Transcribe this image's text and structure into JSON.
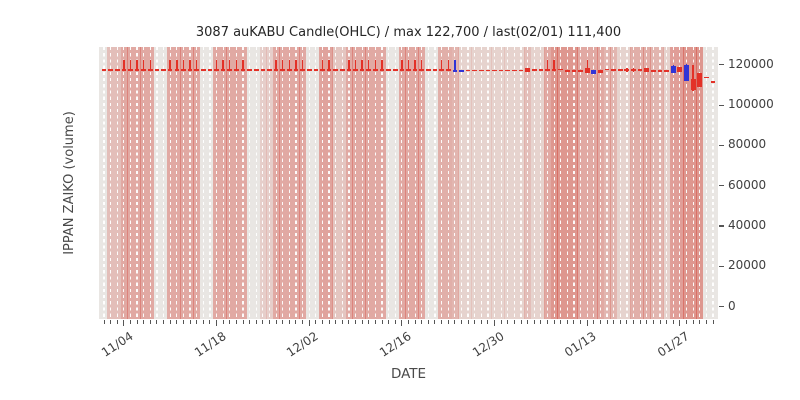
{
  "title": "3087 auKABU Candle(OHLC) / max 122,700 / last(02/01) 111,400",
  "x_axis_label": "DATE",
  "y_axis_label": "IPPAN ZAIKO (volume)",
  "colors": {
    "plot_background": "#e9e6e3",
    "up_candle": "#e33127",
    "down_candle": "#3134d6",
    "volume_band": "212,72,60",
    "gridline": "#ffffff",
    "tick": "#555555",
    "tick_text": "#404040",
    "title_text": "#262626"
  },
  "chart_data": {
    "type": "candlestick",
    "title": "3087 auKABU Candle(OHLC) / max 122,700 / last(02/01) 111,400",
    "xlabel": "DATE",
    "ylabel": "IPPAN ZAIKO (volume)",
    "max_value": 122700,
    "last_date": "02/01",
    "last_value": 111400,
    "days": 93,
    "start_date": "11/01",
    "end_date": "02/01",
    "ylim": [
      -6135,
      128835
    ],
    "grid": "vertical-dashed-per-day",
    "y_ticks": [
      {
        "value": 0,
        "label": "0"
      },
      {
        "value": 20000,
        "label": "20000"
      },
      {
        "value": 40000,
        "label": "40000"
      },
      {
        "value": 60000,
        "label": "60000"
      },
      {
        "value": 80000,
        "label": "80000"
      },
      {
        "value": 100000,
        "label": "100000"
      },
      {
        "value": 120000,
        "label": "120000"
      }
    ],
    "x_ticks": [
      {
        "day": 3,
        "label": "11/04"
      },
      {
        "day": 17,
        "label": "11/18"
      },
      {
        "day": 31,
        "label": "12/02"
      },
      {
        "day": 45,
        "label": "12/16"
      },
      {
        "day": 59,
        "label": "12/30"
      },
      {
        "day": 73,
        "label": "01/13"
      },
      {
        "day": 87,
        "label": "01/27"
      }
    ],
    "candles": [
      {
        "t": "dash",
        "v": 117400
      },
      {
        "t": "dash",
        "v": 117400
      },
      {
        "t": "dash",
        "v": 117400
      },
      {
        "t": "line",
        "lo": 117350,
        "hi": 122600
      },
      {
        "t": "line",
        "lo": 117350,
        "hi": 122600
      },
      {
        "t": "line",
        "lo": 117350,
        "hi": 122600
      },
      {
        "t": "line",
        "lo": 117350,
        "hi": 122600
      },
      {
        "t": "line",
        "lo": 117350,
        "hi": 122600
      },
      {
        "t": "dash",
        "v": 117400
      },
      {
        "t": "dash",
        "v": 117400
      },
      {
        "t": "line",
        "lo": 117350,
        "hi": 122600
      },
      {
        "t": "line",
        "lo": 117350,
        "hi": 122600
      },
      {
        "t": "line",
        "lo": 117350,
        "hi": 122600
      },
      {
        "t": "line",
        "lo": 117350,
        "hi": 122600
      },
      {
        "t": "line",
        "lo": 117350,
        "hi": 122600
      },
      {
        "t": "dash",
        "v": 117400
      },
      {
        "t": "dash",
        "v": 117400
      },
      {
        "t": "line",
        "lo": 117350,
        "hi": 122600
      },
      {
        "t": "line",
        "lo": 117350,
        "hi": 122600
      },
      {
        "t": "line",
        "lo": 117350,
        "hi": 122600
      },
      {
        "t": "line",
        "lo": 117350,
        "hi": 122600
      },
      {
        "t": "line",
        "lo": 117350,
        "hi": 122600
      },
      {
        "t": "dash",
        "v": 117400
      },
      {
        "t": "dash",
        "v": 117400
      },
      {
        "t": "dash",
        "v": 117400
      },
      {
        "t": "dash",
        "v": 117400
      },
      {
        "t": "line",
        "lo": 117350,
        "hi": 122600
      },
      {
        "t": "line",
        "lo": 117350,
        "hi": 122600
      },
      {
        "t": "line",
        "lo": 117350,
        "hi": 122600
      },
      {
        "t": "line",
        "lo": 117350,
        "hi": 122600
      },
      {
        "t": "line",
        "lo": 117350,
        "hi": 122600
      },
      {
        "t": "dash",
        "v": 117400
      },
      {
        "t": "dash",
        "v": 117400
      },
      {
        "t": "line",
        "lo": 117350,
        "hi": 122600
      },
      {
        "t": "line",
        "lo": 117350,
        "hi": 122600
      },
      {
        "t": "dash",
        "v": 117400
      },
      {
        "t": "dash",
        "v": 117400
      },
      {
        "t": "line",
        "lo": 117350,
        "hi": 122600
      },
      {
        "t": "line",
        "lo": 117350,
        "hi": 122600
      },
      {
        "t": "line",
        "lo": 117350,
        "hi": 122600
      },
      {
        "t": "line",
        "lo": 117350,
        "hi": 122600
      },
      {
        "t": "line",
        "lo": 117350,
        "hi": 122600
      },
      {
        "t": "line",
        "lo": 117350,
        "hi": 122600
      },
      {
        "t": "dash",
        "v": 117400
      },
      {
        "t": "dash",
        "v": 117400
      },
      {
        "t": "line",
        "lo": 117350,
        "hi": 122600
      },
      {
        "t": "line",
        "lo": 117350,
        "hi": 122600
      },
      {
        "t": "line",
        "lo": 117350,
        "hi": 122600
      },
      {
        "t": "line",
        "lo": 117350,
        "hi": 122600
      },
      {
        "t": "dash",
        "v": 117400
      },
      {
        "t": "dash",
        "v": 117400
      },
      {
        "t": "line",
        "lo": 117300,
        "hi": 122500
      },
      {
        "t": "line",
        "lo": 117300,
        "hi": 122500
      },
      {
        "t": "line",
        "lo": 117000,
        "hi": 122300,
        "c": "b"
      },
      {
        "t": "dash",
        "v": 116900,
        "c": "b"
      },
      {
        "t": "dash",
        "v": 117200
      },
      {
        "t": "dash",
        "v": 117200
      },
      {
        "t": "dash",
        "v": 117200
      },
      {
        "t": "dash",
        "v": 117200
      },
      {
        "t": "dash",
        "v": 117200
      },
      {
        "t": "dash",
        "v": 117200
      },
      {
        "t": "dash",
        "v": 117200
      },
      {
        "t": "dash",
        "v": 117200
      },
      {
        "t": "dash",
        "v": 117200
      },
      {
        "t": "body",
        "o": 118500,
        "cl": 116200
      },
      {
        "t": "dash",
        "v": 117400
      },
      {
        "t": "dash",
        "v": 117400
      },
      {
        "t": "line",
        "lo": 117300,
        "hi": 122600
      },
      {
        "t": "line",
        "lo": 117300,
        "hi": 122600
      },
      {
        "t": "dash",
        "v": 117600
      },
      {
        "t": "dash",
        "v": 116900
      },
      {
        "t": "dash",
        "v": 116900
      },
      {
        "t": "dash",
        "v": 117000
      },
      {
        "t": "linebody",
        "o": 118400,
        "cl": 115900,
        "hi": 122600
      },
      {
        "t": "body",
        "o": 117400,
        "cl": 115500,
        "c": "b"
      },
      {
        "t": "body",
        "o": 117300,
        "cl": 115700
      },
      {
        "t": "dash",
        "v": 117700
      },
      {
        "t": "dash",
        "v": 117500
      },
      {
        "t": "dash",
        "v": 117400
      },
      {
        "t": "body",
        "o": 117900,
        "cl": 116900,
        "hi": 118500,
        "lo": 116400
      },
      {
        "t": "body",
        "o": 117800,
        "cl": 116800,
        "hi": 118400,
        "lo": 116300
      },
      {
        "t": "dash",
        "v": 117300
      },
      {
        "t": "body",
        "o": 118200,
        "cl": 116400
      },
      {
        "t": "dash",
        "v": 116800
      },
      {
        "t": "dash",
        "v": 116900
      },
      {
        "t": "dash",
        "v": 116900
      },
      {
        "t": "body",
        "o": 119500,
        "cl": 115800,
        "hi": 119900,
        "c": "b"
      },
      {
        "t": "body",
        "o": 119000,
        "cl": 116300
      },
      {
        "t": "body",
        "o": 120000,
        "cl": 112100,
        "hi": 120500,
        "c": "b"
      },
      {
        "t": "body",
        "o": 112800,
        "cl": 107600,
        "hi": 119800,
        "lo": 107000
      },
      {
        "t": "body",
        "o": 116100,
        "cl": 108900
      },
      {
        "t": "dash",
        "v": 113600
      },
      {
        "t": "dash",
        "v": 111400
      }
    ],
    "volume_band_alpha": [
      0,
      0.25,
      0.25,
      0.38,
      0.38,
      0.38,
      0.38,
      0.38,
      0,
      0,
      0.38,
      0.38,
      0.38,
      0.38,
      0.38,
      0,
      0,
      0.38,
      0.38,
      0.38,
      0.38,
      0.38,
      0,
      0,
      0.15,
      0.15,
      0.38,
      0.38,
      0.38,
      0.38,
      0.38,
      0,
      0,
      0.42,
      0.42,
      0.2,
      0.2,
      0.38,
      0.38,
      0.38,
      0.38,
      0.38,
      0.38,
      0,
      0,
      0.38,
      0.38,
      0.38,
      0.38,
      0,
      0,
      0.35,
      0.35,
      0.3,
      0.12,
      0.12,
      0.12,
      0.12,
      0.12,
      0.12,
      0.12,
      0.12,
      0.12,
      0.12,
      0.25,
      0.12,
      0.12,
      0.38,
      0.5,
      0.5,
      0.5,
      0.5,
      0.38,
      0.38,
      0.38,
      0.38,
      0.3,
      0.3,
      0.12,
      0.12,
      0.35,
      0.35,
      0.35,
      0.3,
      0.3,
      0.12,
      0.45,
      0.45,
      0.5,
      0.5,
      0.5,
      0,
      0
    ]
  }
}
